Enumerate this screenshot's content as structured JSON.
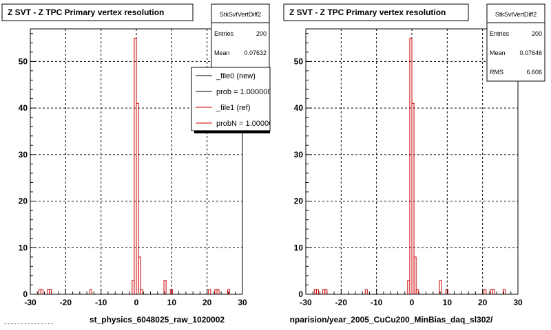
{
  "chart_data": [
    {
      "type": "histogram",
      "title": "Z SVT - Z TPC Primary vertex resolution",
      "xlabel": "st_physics_6048025_raw_1020002",
      "xlim": [
        -30,
        30
      ],
      "ylim": [
        0,
        57
      ],
      "xticks": [
        -30,
        -20,
        -10,
        0,
        10,
        20,
        30
      ],
      "yticks": [
        0,
        10,
        20,
        30,
        40,
        50
      ],
      "grid": true,
      "stats": {
        "name": "StkSvtVertDiff2",
        "rows": [
          {
            "label": "Entries",
            "value": "200"
          },
          {
            "label": "Mean",
            "value": "0.07632"
          }
        ]
      },
      "legend": {
        "placement": "top-right",
        "entries": [
          {
            "label": "_file0 (new)",
            "color": "#000000"
          },
          {
            "label": "prob = 1.000000",
            "color": "#000000"
          },
          {
            "label": "_file1 (ref)",
            "color": "#cc0000"
          },
          {
            "label": "probN = 1.000000",
            "color": "#cc0000"
          }
        ]
      },
      "bin_width": 0.6,
      "bins": [
        {
          "x": -27.6,
          "y": 1
        },
        {
          "x": -27.0,
          "y": 1
        },
        {
          "x": -25.2,
          "y": 1
        },
        {
          "x": -24.6,
          "y": 1
        },
        {
          "x": -13.2,
          "y": 1
        },
        {
          "x": -1.2,
          "y": 3
        },
        {
          "x": -0.6,
          "y": 55
        },
        {
          "x": 0.0,
          "y": 41
        },
        {
          "x": 0.6,
          "y": 8
        },
        {
          "x": 1.2,
          "y": 1
        },
        {
          "x": 7.8,
          "y": 3
        },
        {
          "x": 9.6,
          "y": 1
        },
        {
          "x": 20.4,
          "y": 1
        },
        {
          "x": 22.2,
          "y": 1
        },
        {
          "x": 22.8,
          "y": 1
        },
        {
          "x": 25.8,
          "y": 1
        }
      ]
    },
    {
      "type": "histogram",
      "title": "Z SVT - Z TPC Primary vertex resolution",
      "xlabel": "nparision/year_2005_CuCu200_MinBias_daq_sl302/",
      "xlim": [
        -30,
        30
      ],
      "ylim": [
        0,
        57
      ],
      "xticks": [
        -30,
        -20,
        -10,
        0,
        10,
        20,
        30
      ],
      "yticks": [
        0,
        10,
        20,
        30,
        40,
        50
      ],
      "grid": true,
      "stats": {
        "name": "StkSvtVertDiff2",
        "rows": [
          {
            "label": "Entries",
            "value": "200"
          },
          {
            "label": "Mean",
            "value": "0.07646"
          },
          {
            "label": "RMS",
            "value": "6.606"
          }
        ]
      },
      "bin_width": 0.6,
      "bins": [
        {
          "x": -27.6,
          "y": 1
        },
        {
          "x": -27.0,
          "y": 1
        },
        {
          "x": -25.2,
          "y": 1
        },
        {
          "x": -24.6,
          "y": 1
        },
        {
          "x": -13.2,
          "y": 1
        },
        {
          "x": -1.2,
          "y": 3
        },
        {
          "x": -0.6,
          "y": 55
        },
        {
          "x": 0.0,
          "y": 41
        },
        {
          "x": 0.6,
          "y": 8
        },
        {
          "x": 1.2,
          "y": 1
        },
        {
          "x": 7.8,
          "y": 3
        },
        {
          "x": 9.6,
          "y": 1
        },
        {
          "x": 20.4,
          "y": 1
        },
        {
          "x": 22.2,
          "y": 1
        },
        {
          "x": 22.8,
          "y": 1
        },
        {
          "x": 25.8,
          "y": 1
        }
      ]
    }
  ],
  "footer": "- - - - - - - - - - - - - - -",
  "colors": {
    "hist": "#cc0000",
    "frame": "#000000",
    "grid": "#000000",
    "background": "#ffffff"
  }
}
